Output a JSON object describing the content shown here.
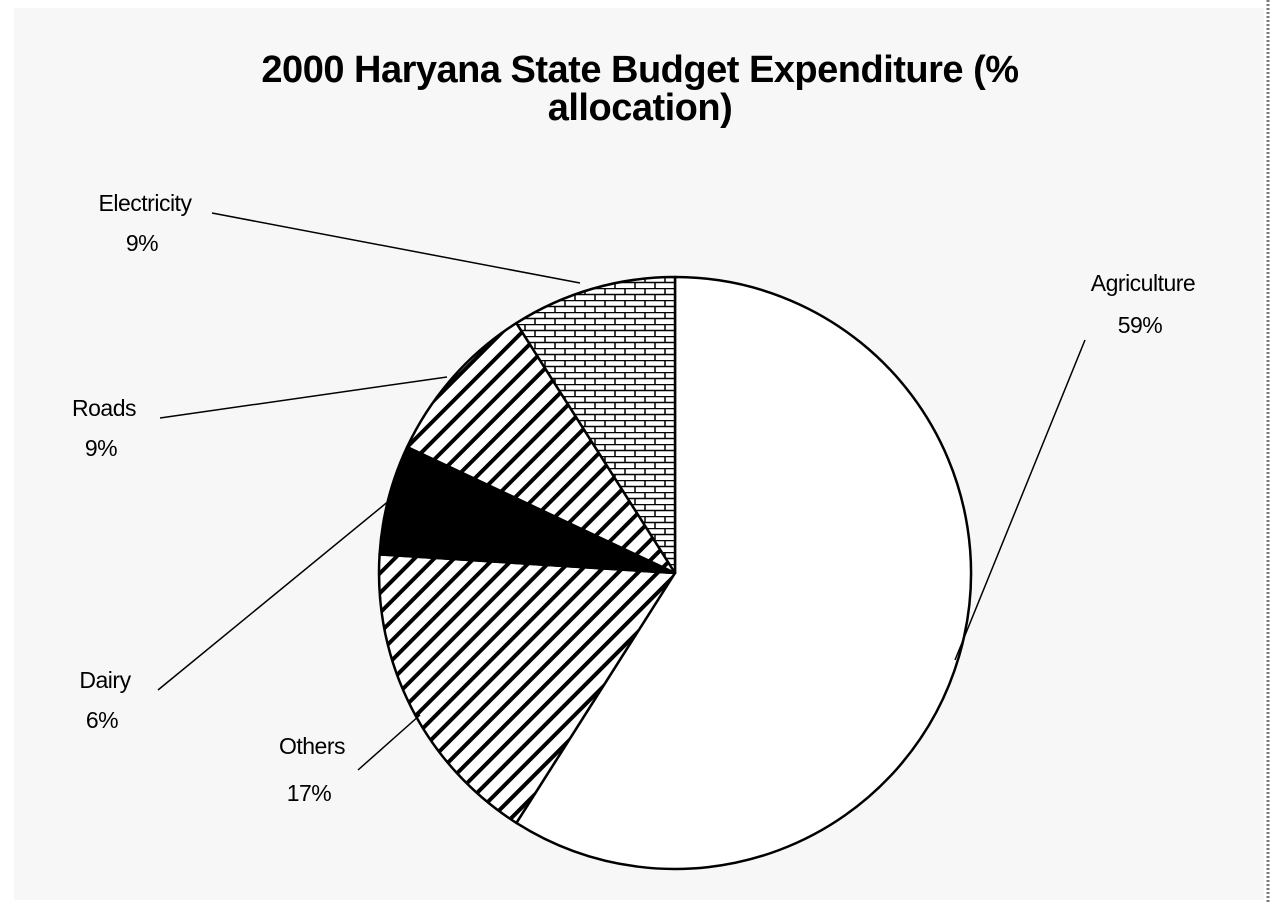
{
  "chart_data": {
    "type": "pie",
    "title": [
      "2000 Haryana State Budget Expenditure (%",
      "allocation)"
    ],
    "categories": [
      "Agriculture",
      "Others",
      "Dairy",
      "Roads",
      "Electricity"
    ],
    "values": [
      59,
      17,
      6,
      9,
      9
    ],
    "value_labels": [
      "59%",
      "17%",
      "6%",
      "9%",
      "9%"
    ],
    "fills": [
      "white",
      "stripes",
      "black",
      "stripes",
      "brick"
    ]
  }
}
